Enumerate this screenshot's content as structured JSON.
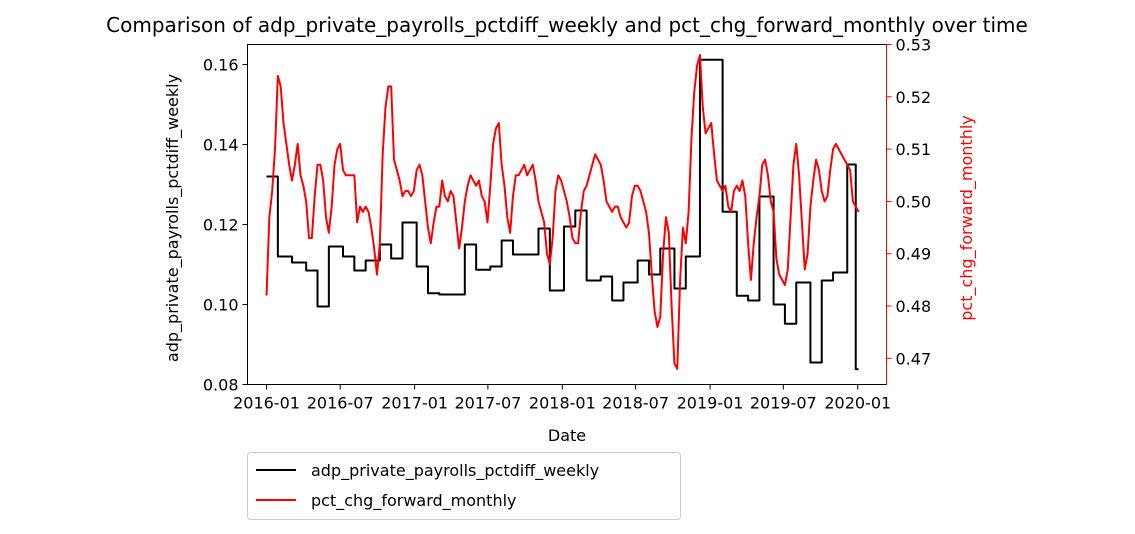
{
  "chart_data": {
    "type": "line",
    "title": "Comparison of adp_private_payrolls_pctdiff_weekly and pct_chg_forward_monthly over time",
    "xlabel": "Date",
    "ylabel_left": "adp_private_payrolls_pctdiff_weekly",
    "ylabel_right": "pct_chg_forward_monthly",
    "x_ticks": [
      "2016-01",
      "2016-07",
      "2017-01",
      "2017-07",
      "2018-01",
      "2018-07",
      "2019-01",
      "2019-07",
      "2020-01"
    ],
    "xlim": [
      "2015-11-15",
      "2020-03-12"
    ],
    "ylim_left": [
      0.08,
      0.165
    ],
    "yticks_left": [
      0.08,
      0.1,
      0.12,
      0.14,
      0.16
    ],
    "ylim_right": [
      0.465,
      0.53
    ],
    "yticks_right": [
      0.47,
      0.48,
      0.49,
      0.5,
      0.51,
      0.52,
      0.53
    ],
    "grid": false,
    "legend": {
      "placement": "below-left"
    },
    "colors": {
      "left_axis": "#000000",
      "right_axis": "#ff0000"
    },
    "series": [
      {
        "name": "adp_private_payrolls_pctdiff_weekly",
        "axis": "left",
        "color": "#000000",
        "step": true,
        "points": [
          [
            "2016-01-01",
            0.132
          ],
          [
            "2016-01-29",
            0.112
          ],
          [
            "2016-03-04",
            0.1105
          ],
          [
            "2016-04-08",
            0.1085
          ],
          [
            "2016-05-06",
            0.0995
          ],
          [
            "2016-06-03",
            0.1145
          ],
          [
            "2016-07-08",
            0.112
          ],
          [
            "2016-08-05",
            0.1085
          ],
          [
            "2016-09-02",
            0.111
          ],
          [
            "2016-10-07",
            0.115
          ],
          [
            "2016-11-04",
            0.1115
          ],
          [
            "2016-12-02",
            0.1205
          ],
          [
            "2017-01-06",
            0.1095
          ],
          [
            "2017-02-03",
            0.1028
          ],
          [
            "2017-03-03",
            0.1025
          ],
          [
            "2017-05-05",
            0.115
          ],
          [
            "2017-06-02",
            0.1087
          ],
          [
            "2017-07-07",
            0.1095
          ],
          [
            "2017-08-04",
            0.116
          ],
          [
            "2017-09-01",
            0.1125
          ],
          [
            "2017-11-03",
            0.119
          ],
          [
            "2017-12-01",
            0.1035
          ],
          [
            "2018-01-05",
            0.1195
          ],
          [
            "2018-02-02",
            0.1235
          ],
          [
            "2018-03-02",
            0.106
          ],
          [
            "2018-04-06",
            0.107
          ],
          [
            "2018-05-04",
            0.101
          ],
          [
            "2018-06-01",
            0.1055
          ],
          [
            "2018-07-06",
            0.111
          ],
          [
            "2018-08-03",
            0.1075
          ],
          [
            "2018-08-31",
            0.114
          ],
          [
            "2018-10-05",
            0.104
          ],
          [
            "2018-11-02",
            0.112
          ],
          [
            "2018-12-07",
            0.1612
          ],
          [
            "2019-02-01",
            0.1232
          ],
          [
            "2019-03-08",
            0.1022
          ],
          [
            "2019-04-05",
            0.101
          ],
          [
            "2019-05-03",
            0.127
          ],
          [
            "2019-06-07",
            0.1
          ],
          [
            "2019-07-05",
            0.0952
          ],
          [
            "2019-08-02",
            0.1055
          ],
          [
            "2019-09-06",
            0.0855
          ],
          [
            "2019-10-04",
            0.106
          ],
          [
            "2019-11-01",
            0.108
          ],
          [
            "2019-12-06",
            0.135
          ],
          [
            "2019-12-27",
            0.0838
          ],
          [
            "2020-01-03",
            0.0838
          ]
        ]
      },
      {
        "name": "pct_chg_forward_monthly",
        "axis": "right",
        "color": "#ff0000",
        "step": false,
        "points": [
          [
            "2016-01-01",
            0.482
          ],
          [
            "2016-01-08",
            0.497
          ],
          [
            "2016-01-15",
            0.502
          ],
          [
            "2016-01-22",
            0.51
          ],
          [
            "2016-01-29",
            0.524
          ],
          [
            "2016-02-05",
            0.522
          ],
          [
            "2016-02-12",
            0.515
          ],
          [
            "2016-02-19",
            0.511
          ],
          [
            "2016-02-26",
            0.507
          ],
          [
            "2016-03-04",
            0.504
          ],
          [
            "2016-03-11",
            0.507
          ],
          [
            "2016-03-18",
            0.511
          ],
          [
            "2016-03-25",
            0.505
          ],
          [
            "2016-04-01",
            0.503
          ],
          [
            "2016-04-08",
            0.5
          ],
          [
            "2016-04-15",
            0.493
          ],
          [
            "2016-04-22",
            0.493
          ],
          [
            "2016-04-29",
            0.501
          ],
          [
            "2016-05-06",
            0.507
          ],
          [
            "2016-05-13",
            0.507
          ],
          [
            "2016-05-20",
            0.504
          ],
          [
            "2016-05-27",
            0.497
          ],
          [
            "2016-06-03",
            0.494
          ],
          [
            "2016-06-10",
            0.499
          ],
          [
            "2016-06-17",
            0.507
          ],
          [
            "2016-06-24",
            0.51
          ],
          [
            "2016-07-01",
            0.511
          ],
          [
            "2016-07-08",
            0.506
          ],
          [
            "2016-07-15",
            0.505
          ],
          [
            "2016-07-22",
            0.505
          ],
          [
            "2016-07-29",
            0.505
          ],
          [
            "2016-08-05",
            0.505
          ],
          [
            "2016-08-12",
            0.496
          ],
          [
            "2016-08-19",
            0.499
          ],
          [
            "2016-08-26",
            0.498
          ],
          [
            "2016-09-02",
            0.499
          ],
          [
            "2016-09-09",
            0.498
          ],
          [
            "2016-09-16",
            0.495
          ],
          [
            "2016-09-23",
            0.491
          ],
          [
            "2016-09-30",
            0.486
          ],
          [
            "2016-10-07",
            0.492
          ],
          [
            "2016-10-14",
            0.509
          ],
          [
            "2016-10-21",
            0.518
          ],
          [
            "2016-10-28",
            0.522
          ],
          [
            "2016-11-04",
            0.522
          ],
          [
            "2016-11-11",
            0.508
          ],
          [
            "2016-11-18",
            0.506
          ],
          [
            "2016-11-25",
            0.504
          ],
          [
            "2016-12-02",
            0.501
          ],
          [
            "2016-12-09",
            0.502
          ],
          [
            "2016-12-16",
            0.502
          ],
          [
            "2016-12-23",
            0.501
          ],
          [
            "2016-12-30",
            0.502
          ],
          [
            "2017-01-06",
            0.506
          ],
          [
            "2017-01-13",
            0.507
          ],
          [
            "2017-01-20",
            0.505
          ],
          [
            "2017-01-27",
            0.5
          ],
          [
            "2017-02-03",
            0.495
          ],
          [
            "2017-02-10",
            0.492
          ],
          [
            "2017-02-17",
            0.496
          ],
          [
            "2017-02-24",
            0.499
          ],
          [
            "2017-03-03",
            0.499
          ],
          [
            "2017-03-10",
            0.504
          ],
          [
            "2017-03-17",
            0.501
          ],
          [
            "2017-03-24",
            0.5
          ],
          [
            "2017-03-31",
            0.502
          ],
          [
            "2017-04-07",
            0.501
          ],
          [
            "2017-04-14",
            0.496
          ],
          [
            "2017-04-21",
            0.491
          ],
          [
            "2017-04-28",
            0.495
          ],
          [
            "2017-05-05",
            0.5
          ],
          [
            "2017-05-12",
            0.503
          ],
          [
            "2017-05-19",
            0.505
          ],
          [
            "2017-05-26",
            0.504
          ],
          [
            "2017-06-02",
            0.503
          ],
          [
            "2017-06-09",
            0.504
          ],
          [
            "2017-06-16",
            0.501
          ],
          [
            "2017-06-23",
            0.5
          ],
          [
            "2017-06-30",
            0.496
          ],
          [
            "2017-07-07",
            0.503
          ],
          [
            "2017-07-14",
            0.511
          ],
          [
            "2017-07-21",
            0.514
          ],
          [
            "2017-07-28",
            0.515
          ],
          [
            "2017-08-04",
            0.507
          ],
          [
            "2017-08-11",
            0.503
          ],
          [
            "2017-08-18",
            0.497
          ],
          [
            "2017-08-25",
            0.494
          ],
          [
            "2017-09-01",
            0.501
          ],
          [
            "2017-09-08",
            0.505
          ],
          [
            "2017-09-15",
            0.505
          ],
          [
            "2017-09-22",
            0.506
          ],
          [
            "2017-09-29",
            0.507
          ],
          [
            "2017-10-06",
            0.505
          ],
          [
            "2017-10-13",
            0.506
          ],
          [
            "2017-10-20",
            0.507
          ],
          [
            "2017-10-27",
            0.504
          ],
          [
            "2017-11-03",
            0.5
          ],
          [
            "2017-11-10",
            0.498
          ],
          [
            "2017-11-17",
            0.496
          ],
          [
            "2017-11-24",
            0.49
          ],
          [
            "2017-12-01",
            0.488
          ],
          [
            "2017-12-08",
            0.493
          ],
          [
            "2017-12-15",
            0.502
          ],
          [
            "2017-12-22",
            0.505
          ],
          [
            "2017-12-29",
            0.504
          ],
          [
            "2018-01-05",
            0.502
          ],
          [
            "2018-01-12",
            0.5
          ],
          [
            "2018-01-19",
            0.497
          ],
          [
            "2018-01-26",
            0.493
          ],
          [
            "2018-02-02",
            0.492
          ],
          [
            "2018-02-09",
            0.492
          ],
          [
            "2018-02-16",
            0.498
          ],
          [
            "2018-02-23",
            0.502
          ],
          [
            "2018-03-02",
            0.503
          ],
          [
            "2018-03-09",
            0.505
          ],
          [
            "2018-03-16",
            0.507
          ],
          [
            "2018-03-23",
            0.509
          ],
          [
            "2018-03-30",
            0.508
          ],
          [
            "2018-04-06",
            0.507
          ],
          [
            "2018-04-13",
            0.504
          ],
          [
            "2018-04-20",
            0.5
          ],
          [
            "2018-04-27",
            0.499
          ],
          [
            "2018-05-04",
            0.498
          ],
          [
            "2018-05-11",
            0.499
          ],
          [
            "2018-05-18",
            0.499
          ],
          [
            "2018-05-25",
            0.497
          ],
          [
            "2018-06-01",
            0.496
          ],
          [
            "2018-06-08",
            0.495
          ],
          [
            "2018-06-15",
            0.496
          ],
          [
            "2018-06-22",
            0.501
          ],
          [
            "2018-06-29",
            0.503
          ],
          [
            "2018-07-06",
            0.503
          ],
          [
            "2018-07-13",
            0.502
          ],
          [
            "2018-07-20",
            0.5
          ],
          [
            "2018-07-27",
            0.498
          ],
          [
            "2018-08-03",
            0.494
          ],
          [
            "2018-08-10",
            0.486
          ],
          [
            "2018-08-17",
            0.479
          ],
          [
            "2018-08-24",
            0.476
          ],
          [
            "2018-08-31",
            0.478
          ],
          [
            "2018-09-07",
            0.49
          ],
          [
            "2018-09-14",
            0.497
          ],
          [
            "2018-09-21",
            0.494
          ],
          [
            "2018-09-28",
            0.48
          ],
          [
            "2018-10-05",
            0.469
          ],
          [
            "2018-10-12",
            0.468
          ],
          [
            "2018-10-19",
            0.485
          ],
          [
            "2018-10-26",
            0.495
          ],
          [
            "2018-11-02",
            0.492
          ],
          [
            "2018-11-09",
            0.498
          ],
          [
            "2018-11-16",
            0.512
          ],
          [
            "2018-11-23",
            0.521
          ],
          [
            "2018-11-30",
            0.526
          ],
          [
            "2018-12-07",
            0.528
          ],
          [
            "2018-12-14",
            0.518
          ],
          [
            "2018-12-21",
            0.513
          ],
          [
            "2018-12-28",
            0.514
          ],
          [
            "2019-01-04",
            0.515
          ],
          [
            "2019-01-11",
            0.509
          ],
          [
            "2019-01-18",
            0.504
          ],
          [
            "2019-01-25",
            0.503
          ],
          [
            "2019-02-01",
            0.502
          ],
          [
            "2019-02-08",
            0.503
          ],
          [
            "2019-02-15",
            0.499
          ],
          [
            "2019-02-22",
            0.498
          ],
          [
            "2019-03-01",
            0.502
          ],
          [
            "2019-03-08",
            0.503
          ],
          [
            "2019-03-15",
            0.502
          ],
          [
            "2019-03-22",
            0.504
          ],
          [
            "2019-03-29",
            0.501
          ],
          [
            "2019-04-05",
            0.492
          ],
          [
            "2019-04-12",
            0.485
          ],
          [
            "2019-04-19",
            0.492
          ],
          [
            "2019-04-26",
            0.497
          ],
          [
            "2019-05-03",
            0.501
          ],
          [
            "2019-05-10",
            0.507
          ],
          [
            "2019-05-17",
            0.508
          ],
          [
            "2019-05-24",
            0.505
          ],
          [
            "2019-05-31",
            0.5
          ],
          [
            "2019-06-07",
            0.498
          ],
          [
            "2019-06-14",
            0.489
          ],
          [
            "2019-06-21",
            0.486
          ],
          [
            "2019-06-28",
            0.485
          ],
          [
            "2019-07-05",
            0.484
          ],
          [
            "2019-07-12",
            0.487
          ],
          [
            "2019-07-19",
            0.497
          ],
          [
            "2019-07-26",
            0.507
          ],
          [
            "2019-08-02",
            0.511
          ],
          [
            "2019-08-09",
            0.505
          ],
          [
            "2019-08-16",
            0.496
          ],
          [
            "2019-08-23",
            0.487
          ],
          [
            "2019-08-30",
            0.49
          ],
          [
            "2019-09-06",
            0.499
          ],
          [
            "2019-09-13",
            0.504
          ],
          [
            "2019-09-20",
            0.508
          ],
          [
            "2019-09-27",
            0.506
          ],
          [
            "2019-10-04",
            0.502
          ],
          [
            "2019-10-11",
            0.5
          ],
          [
            "2019-10-18",
            0.501
          ],
          [
            "2019-10-25",
            0.506
          ],
          [
            "2019-11-01",
            0.51
          ],
          [
            "2019-11-08",
            0.511
          ],
          [
            "2019-11-15",
            0.51
          ],
          [
            "2019-11-22",
            0.509
          ],
          [
            "2019-11-29",
            0.508
          ],
          [
            "2019-12-06",
            0.507
          ],
          [
            "2019-12-13",
            0.506
          ],
          [
            "2019-12-20",
            0.5
          ],
          [
            "2019-12-27",
            0.499
          ],
          [
            "2020-01-03",
            0.498
          ]
        ]
      }
    ]
  }
}
